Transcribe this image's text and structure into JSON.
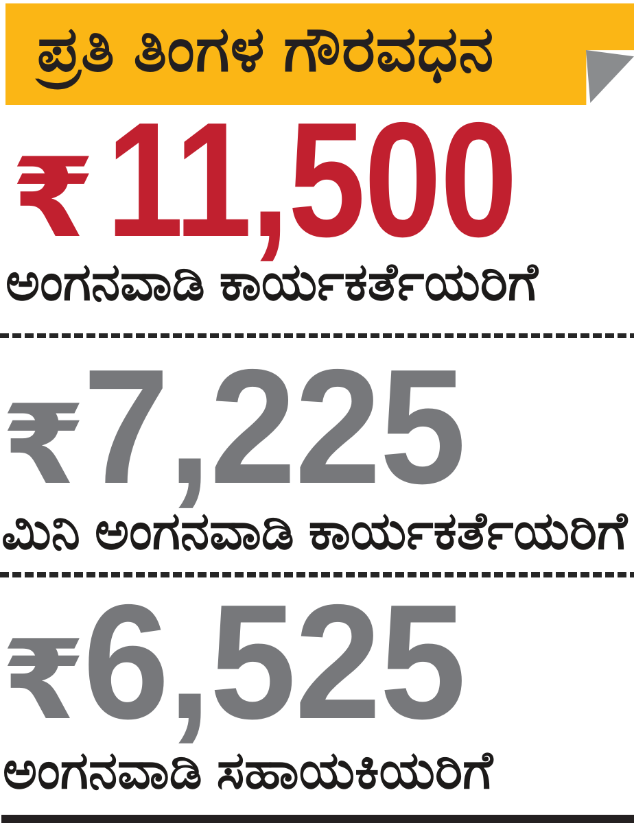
{
  "page": {
    "background_color": "#FFFFFF"
  },
  "header": {
    "title": "ಪ್ರತಿ ತಿಂಗಳ ಗೌರವಧನ",
    "background_color": "#FBB615",
    "text_color": "#231F20",
    "fold_color": "#8A8C8E"
  },
  "entries": [
    {
      "currency": "₹",
      "amount": "11,500",
      "amount_color": "#C1202F",
      "label": "ಅಂಗನವಾಡಿ ಕಾರ್ಯಕರ್ತೆಯರಿಗೆ"
    },
    {
      "currency": "₹",
      "amount": "7,225",
      "amount_color": "#77787B",
      "label": "ಮಿನಿ ಅಂಗನವಾಡಿ ಕಾರ್ಯಕರ್ತೆಯರಿಗೆ"
    },
    {
      "currency": "₹",
      "amount": "6,525",
      "amount_color": "#77787B",
      "label": "ಅಂಗನವಾಡಿ ಸಹಾಯಕಿಯರಿಗೆ"
    }
  ],
  "divider_color": "#262626",
  "bottom_bar_color": "#242021",
  "chart_data": {
    "type": "table",
    "title": "ಪ್ರತಿ ತಿಂಗಳ ಗೌರವಧನ",
    "categories": [
      "ಅಂಗನವಾಡಿ ಕಾರ್ಯಕರ್ತೆಯರಿಗೆ",
      "ಮಿನಿ ಅಂಗನವಾಡಿ ಕಾರ್ಯಕರ್ತೆಯರಿಗೆ",
      "ಅಂಗನವಾಡಿ ಸಹಾಯಕಿಯರಿಗೆ"
    ],
    "values": [
      11500,
      7225,
      6525
    ],
    "currency": "₹",
    "value_colors": [
      "#C1202F",
      "#77787B",
      "#77787B"
    ],
    "legend_position": "none",
    "grid": false
  }
}
